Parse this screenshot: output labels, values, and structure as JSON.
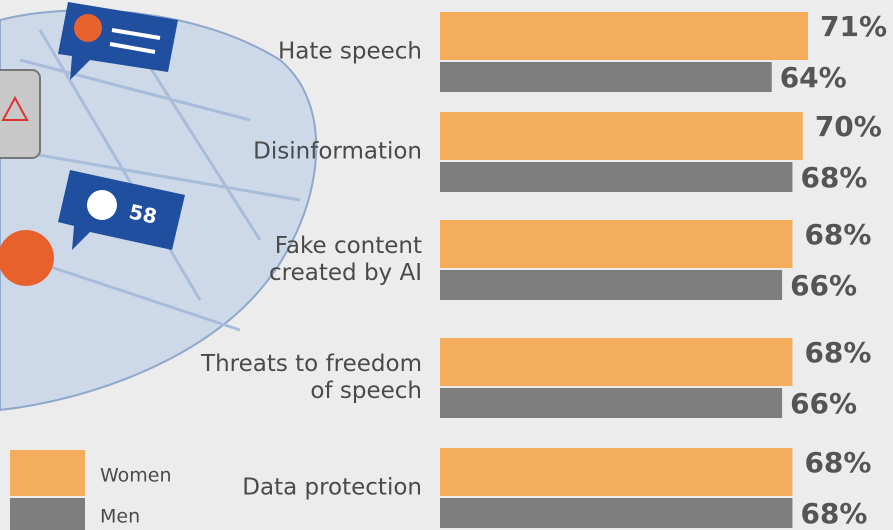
{
  "chart_data": {
    "type": "bar",
    "categories": [
      "Hate speech",
      "Disinformation",
      "Fake content\ncreated by AI",
      "Threats to freedom\nof speech",
      "Data protection"
    ],
    "series": [
      {
        "name": "Women",
        "color": "#f4ad5c",
        "values": [
          71,
          70,
          68,
          68,
          68
        ],
        "value_labels": [
          "71%",
          "70%",
          "68%",
          "68%",
          "68%"
        ]
      },
      {
        "name": "Men",
        "color": "#7e7e7e",
        "values": [
          64,
          68,
          66,
          66,
          68
        ],
        "value_labels": [
          "64%",
          "68%",
          "66%",
          "66%",
          "68%"
        ]
      }
    ]
  },
  "illustration": {
    "badge": "58"
  }
}
